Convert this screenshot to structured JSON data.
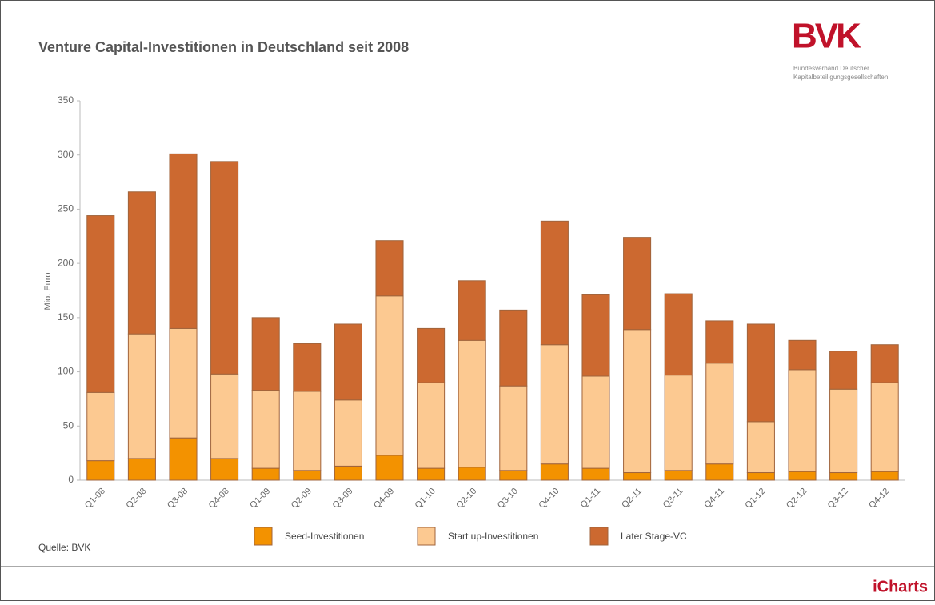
{
  "chart_data": {
    "type": "bar",
    "stacked": true,
    "title": "Venture Capital-Investitionen in Deutschland seit 2008",
    "y_label": "Mio. Euro",
    "source": "Quelle: BVK",
    "categories": [
      "Q1-08",
      "Q2-08",
      "Q3-08",
      "Q4-08",
      "Q1-09",
      "Q2-09",
      "Q3-09",
      "Q4-09",
      "Q1-10",
      "Q2-10",
      "Q3-10",
      "Q4-10",
      "Q1-11",
      "Q2-11",
      "Q3-11",
      "Q4-11",
      "Q1-12",
      "Q2-12",
      "Q3-12",
      "Q4-12"
    ],
    "series": [
      {
        "name": "Seed-Investitionen",
        "color": "#f39200",
        "values": [
          18,
          20,
          39,
          20,
          11,
          9,
          13,
          23,
          11,
          12,
          9,
          15,
          11,
          7,
          9,
          15,
          7,
          8,
          7,
          8
        ]
      },
      {
        "name": "Start up-Investitionen",
        "color": "#fcc991",
        "values": [
          63,
          115,
          101,
          78,
          72,
          73,
          61,
          147,
          79,
          117,
          78,
          110,
          85,
          132,
          88,
          93,
          47,
          94,
          77,
          82
        ]
      },
      {
        "name": "Later Stage-VC",
        "color": "#cc6930",
        "values": [
          163,
          131,
          161,
          196,
          67,
          44,
          70,
          51,
          50,
          55,
          70,
          114,
          75,
          85,
          75,
          39,
          90,
          27,
          35,
          35
        ]
      }
    ],
    "ylim": [
      0,
      350
    ],
    "yticks": [
      0,
      50,
      100,
      150,
      200,
      250,
      300,
      350
    ]
  },
  "logo": {
    "text": "BVK",
    "lines": [
      "Bundesverband Deutscher",
      "Kapitalbeteiligungsgesellschaften"
    ]
  },
  "footer": {
    "brand": "iCharts"
  }
}
